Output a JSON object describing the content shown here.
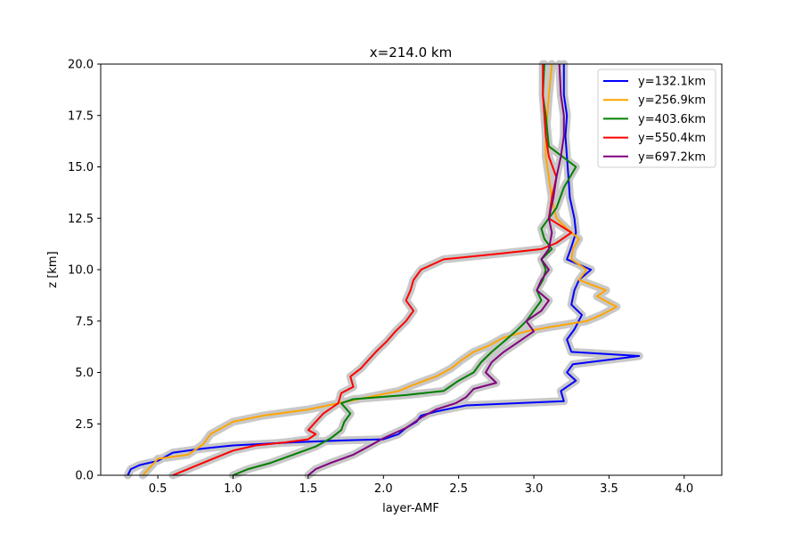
{
  "chart_data": {
    "type": "line",
    "title": "x=214.0 km",
    "xlabel": "layer-AMF",
    "ylabel": "z [km]",
    "xlim": [
      0.12,
      4.25
    ],
    "ylim": [
      0,
      20
    ],
    "xticks": [
      "0.5",
      "1.0",
      "1.5",
      "2.0",
      "2.5",
      "3.0",
      "3.5",
      "4.0"
    ],
    "yticks": [
      "0.0",
      "2.5",
      "5.0",
      "7.5",
      "10.0",
      "12.5",
      "15.0",
      "17.5",
      "20.0"
    ],
    "xtick_values": [
      0.5,
      1.0,
      1.5,
      2.0,
      2.5,
      3.0,
      3.5,
      4.0
    ],
    "ytick_values": [
      0,
      2.5,
      5,
      7.5,
      10,
      12.5,
      15,
      17.5,
      20
    ],
    "grid": false,
    "legend_position": "top-right",
    "uncertainty_band_color": "#c8c8c8",
    "series": [
      {
        "name": "y=132.1km",
        "color": "#0000ff",
        "points": [
          [
            0.3,
            0
          ],
          [
            0.32,
            0.3
          ],
          [
            0.38,
            0.5
          ],
          [
            0.5,
            0.7
          ],
          [
            0.6,
            1.1
          ],
          [
            0.8,
            1.3
          ],
          [
            1.0,
            1.45
          ],
          [
            1.4,
            1.6
          ],
          [
            1.75,
            1.7
          ],
          [
            2.0,
            1.75
          ],
          [
            2.1,
            2.0
          ],
          [
            2.15,
            2.3
          ],
          [
            2.22,
            2.6
          ],
          [
            2.25,
            2.9
          ],
          [
            2.35,
            3.1
          ],
          [
            2.55,
            3.4
          ],
          [
            3.2,
            3.6
          ],
          [
            3.18,
            4.1
          ],
          [
            3.28,
            4.6
          ],
          [
            3.22,
            5.0
          ],
          [
            3.26,
            5.4
          ],
          [
            3.7,
            5.8
          ],
          [
            3.25,
            6.0
          ],
          [
            3.22,
            6.6
          ],
          [
            3.27,
            7.1
          ],
          [
            3.32,
            7.8
          ],
          [
            3.25,
            8.3
          ],
          [
            3.27,
            9.0
          ],
          [
            3.3,
            9.5
          ],
          [
            3.38,
            10.0
          ],
          [
            3.22,
            10.5
          ],
          [
            3.25,
            11.1
          ],
          [
            3.28,
            11.8
          ],
          [
            3.27,
            12.5
          ],
          [
            3.24,
            13.5
          ],
          [
            3.23,
            14.5
          ],
          [
            3.22,
            15.5
          ],
          [
            3.21,
            16.5
          ],
          [
            3.22,
            17.5
          ],
          [
            3.2,
            18.5
          ],
          [
            3.2,
            20.0
          ]
        ]
      },
      {
        "name": "y=256.9km",
        "color": "#ffa500",
        "points": [
          [
            0.4,
            0
          ],
          [
            0.45,
            0.4
          ],
          [
            0.5,
            0.8
          ],
          [
            0.7,
            1.0
          ],
          [
            0.8,
            1.5
          ],
          [
            0.85,
            2.0
          ],
          [
            1.0,
            2.6
          ],
          [
            1.2,
            2.9
          ],
          [
            1.5,
            3.2
          ],
          [
            1.7,
            3.5
          ],
          [
            1.9,
            3.8
          ],
          [
            2.1,
            4.1
          ],
          [
            2.2,
            4.4
          ],
          [
            2.35,
            4.8
          ],
          [
            2.45,
            5.2
          ],
          [
            2.52,
            5.6
          ],
          [
            2.6,
            6.0
          ],
          [
            2.7,
            6.3
          ],
          [
            2.8,
            6.7
          ],
          [
            2.95,
            7.0
          ],
          [
            3.1,
            7.2
          ],
          [
            3.35,
            7.5
          ],
          [
            3.45,
            7.8
          ],
          [
            3.55,
            8.2
          ],
          [
            3.42,
            8.7
          ],
          [
            3.48,
            9.0
          ],
          [
            3.3,
            9.5
          ],
          [
            3.35,
            10.0
          ],
          [
            3.25,
            10.5
          ],
          [
            3.26,
            11.0
          ],
          [
            3.3,
            11.5
          ],
          [
            3.22,
            12.0
          ],
          [
            3.15,
            12.5
          ],
          [
            3.12,
            13.5
          ],
          [
            3.1,
            14.5
          ],
          [
            3.08,
            15.5
          ],
          [
            3.08,
            16.5
          ],
          [
            3.09,
            17.5
          ],
          [
            3.1,
            18.5
          ],
          [
            3.12,
            20.0
          ]
        ]
      },
      {
        "name": "y=403.6km",
        "color": "#008000",
        "points": [
          [
            1.0,
            0
          ],
          [
            1.1,
            0.3
          ],
          [
            1.25,
            0.6
          ],
          [
            1.4,
            1.0
          ],
          [
            1.55,
            1.4
          ],
          [
            1.65,
            1.8
          ],
          [
            1.72,
            2.2
          ],
          [
            1.74,
            2.6
          ],
          [
            1.78,
            3.0
          ],
          [
            1.72,
            3.5
          ],
          [
            1.8,
            3.7
          ],
          [
            2.15,
            3.9
          ],
          [
            2.4,
            4.1
          ],
          [
            2.5,
            4.6
          ],
          [
            2.6,
            5.0
          ],
          [
            2.65,
            5.5
          ],
          [
            2.72,
            6.0
          ],
          [
            2.8,
            6.5
          ],
          [
            2.88,
            7.0
          ],
          [
            2.95,
            7.5
          ],
          [
            3.0,
            8.0
          ],
          [
            3.05,
            8.5
          ],
          [
            3.02,
            9.0
          ],
          [
            3.06,
            9.5
          ],
          [
            3.08,
            10.0
          ],
          [
            3.05,
            10.5
          ],
          [
            3.12,
            11.0
          ],
          [
            3.07,
            11.5
          ],
          [
            3.05,
            12.0
          ],
          [
            3.15,
            13.0
          ],
          [
            3.2,
            14.0
          ],
          [
            3.28,
            15.0
          ],
          [
            3.1,
            16.0
          ],
          [
            3.08,
            17.5
          ],
          [
            3.06,
            18.5
          ],
          [
            3.07,
            20.0
          ]
        ]
      },
      {
        "name": "y=550.4km",
        "color": "#ff0000",
        "points": [
          [
            0.6,
            0
          ],
          [
            0.7,
            0.3
          ],
          [
            0.8,
            0.6
          ],
          [
            0.9,
            0.9
          ],
          [
            1.0,
            1.2
          ],
          [
            1.15,
            1.45
          ],
          [
            1.35,
            1.6
          ],
          [
            1.5,
            1.75
          ],
          [
            1.55,
            2.0
          ],
          [
            1.5,
            2.2
          ],
          [
            1.55,
            2.6
          ],
          [
            1.6,
            3.0
          ],
          [
            1.7,
            3.5
          ],
          [
            1.72,
            4.0
          ],
          [
            1.8,
            4.3
          ],
          [
            1.78,
            4.8
          ],
          [
            1.85,
            5.2
          ],
          [
            1.9,
            5.6
          ],
          [
            1.95,
            6.0
          ],
          [
            2.02,
            6.5
          ],
          [
            2.08,
            7.0
          ],
          [
            2.15,
            7.5
          ],
          [
            2.2,
            8.0
          ],
          [
            2.15,
            8.5
          ],
          [
            2.18,
            9.0
          ],
          [
            2.2,
            9.5
          ],
          [
            2.25,
            10.0
          ],
          [
            2.4,
            10.5
          ],
          [
            2.8,
            10.8
          ],
          [
            3.05,
            11.0
          ],
          [
            3.15,
            11.3
          ],
          [
            3.25,
            11.8
          ],
          [
            3.1,
            12.5
          ],
          [
            3.12,
            13.5
          ],
          [
            3.15,
            14.5
          ],
          [
            3.1,
            15.5
          ],
          [
            3.08,
            16.5
          ],
          [
            3.07,
            17.5
          ],
          [
            3.06,
            18.5
          ],
          [
            3.06,
            20.0
          ]
        ]
      },
      {
        "name": "y=697.2km",
        "color": "#800080",
        "points": [
          [
            1.5,
            0
          ],
          [
            1.55,
            0.3
          ],
          [
            1.65,
            0.6
          ],
          [
            1.8,
            1.0
          ],
          [
            1.9,
            1.4
          ],
          [
            2.0,
            1.8
          ],
          [
            2.15,
            2.3
          ],
          [
            2.25,
            2.8
          ],
          [
            2.35,
            3.2
          ],
          [
            2.48,
            3.5
          ],
          [
            2.55,
            3.8
          ],
          [
            2.6,
            4.2
          ],
          [
            2.75,
            4.5
          ],
          [
            2.68,
            5.0
          ],
          [
            2.72,
            5.5
          ],
          [
            2.8,
            6.0
          ],
          [
            2.9,
            6.5
          ],
          [
            3.0,
            7.0
          ],
          [
            2.95,
            7.5
          ],
          [
            3.05,
            8.0
          ],
          [
            3.1,
            8.5
          ],
          [
            3.02,
            9.0
          ],
          [
            3.05,
            9.5
          ],
          [
            3.1,
            10.0
          ],
          [
            3.05,
            10.5
          ],
          [
            3.1,
            11.0
          ],
          [
            3.12,
            11.8
          ],
          [
            3.1,
            12.5
          ],
          [
            3.13,
            13.5
          ],
          [
            3.15,
            14.5
          ],
          [
            3.18,
            15.5
          ],
          [
            3.2,
            16.5
          ],
          [
            3.2,
            17.5
          ],
          [
            3.18,
            18.5
          ],
          [
            3.17,
            20.0
          ]
        ]
      }
    ]
  }
}
